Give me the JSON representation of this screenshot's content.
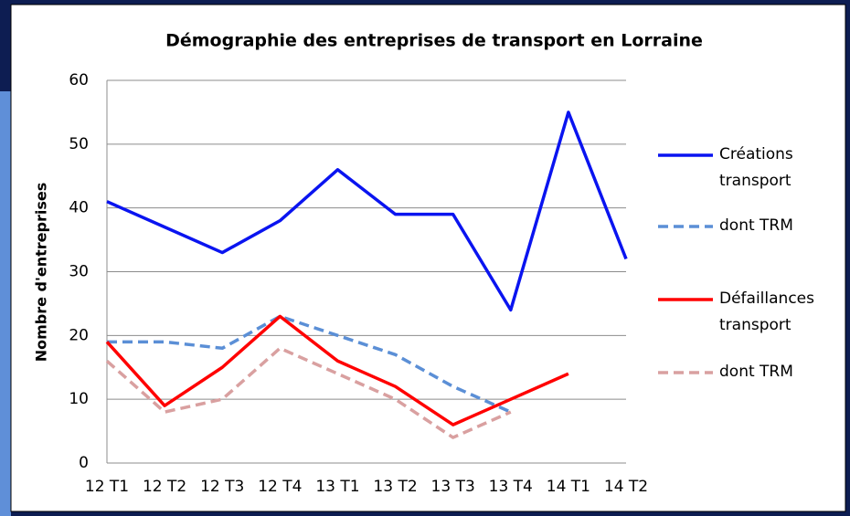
{
  "chart_data": {
    "type": "line",
    "title": "Démographie des entreprises de transport en Lorraine",
    "y_label": "Nombre d'entreprises",
    "categories": [
      "12 T1",
      "12 T2",
      "12 T3",
      "12 T4",
      "13 T1",
      "13 T2",
      "13 T3",
      "13 T4",
      "14 T1",
      "14 T2"
    ],
    "series": [
      {
        "name": "Créations transport",
        "color": "#0a14f0",
        "line_style": "solid",
        "values": [
          41,
          37,
          33,
          38,
          46,
          39,
          39,
          24,
          55,
          32
        ]
      },
      {
        "name": "dont TRM",
        "color": "#5b8fd6",
        "line_style": "dashed",
        "values": [
          19,
          19,
          18,
          23,
          20,
          17,
          12,
          8,
          null,
          null
        ]
      },
      {
        "name": "Défaillances transport",
        "color": "#ff0000",
        "line_style": "solid",
        "values": [
          19,
          9,
          15,
          23,
          16,
          12,
          6,
          10,
          14,
          null
        ]
      },
      {
        "name": "dont TRM",
        "color": "#d9a0a0",
        "line_style": "dashed",
        "values": [
          16,
          8,
          10,
          18,
          14,
          10,
          4,
          8,
          null,
          null
        ]
      }
    ],
    "ylim": [
      0,
      60
    ],
    "yticks": [
      0,
      10,
      20,
      30,
      40,
      50,
      60
    ],
    "grid": true,
    "legend": "right"
  }
}
